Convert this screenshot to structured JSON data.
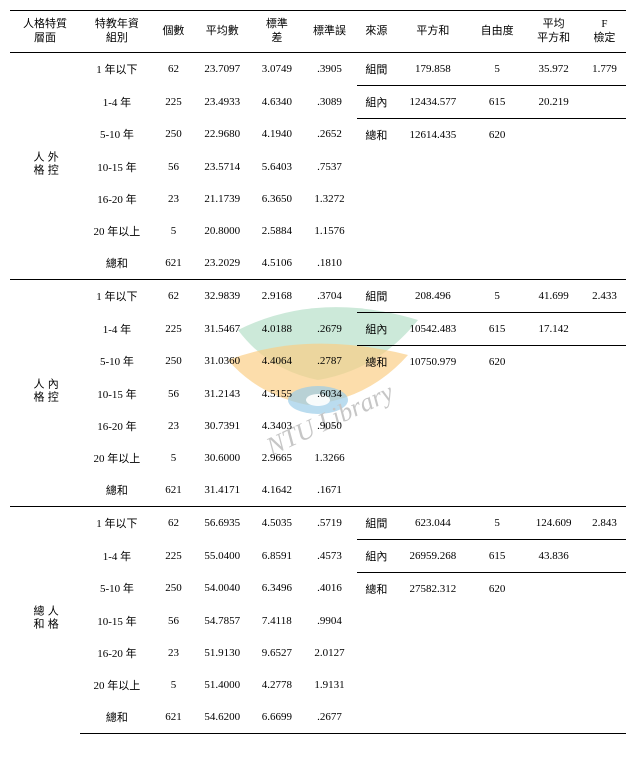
{
  "headers": {
    "c0": "人格特質\n層面",
    "c1": "特教年資\n組別",
    "c2": "個數",
    "c3": "平均數",
    "c4": "標準\n差",
    "c5": "標準誤",
    "c6": "來源",
    "c7": "平方和",
    "c8": "自由度",
    "c9": "平均\n平方和",
    "c10": "F\n檢定"
  },
  "rowlabels": {
    "r1": "1 年以下",
    "r2": "1-4 年",
    "r3": "5-10 年",
    "r4": "10-15 年",
    "r5": "16-20 年",
    "r6": "20 年以上",
    "r7": "總和"
  },
  "src": {
    "between": "組間",
    "within": "組內",
    "total": "總和"
  },
  "sections": [
    {
      "label": "外控\n人格",
      "rows": [
        {
          "n": "62",
          "mean": "23.7097",
          "sd": "3.0749",
          "se": ".3905",
          "src": "between",
          "ss": "179.858",
          "df": "5",
          "ms": "35.972",
          "f": "1.779"
        },
        {
          "n": "225",
          "mean": "23.4933",
          "sd": "4.6340",
          "se": ".3089",
          "src": "within",
          "ss": "12434.577",
          "df": "615",
          "ms": "20.219",
          "f": ""
        },
        {
          "n": "250",
          "mean": "22.9680",
          "sd": "4.1940",
          "se": ".2652",
          "src": "total",
          "ss": "12614.435",
          "df": "620",
          "ms": "",
          "f": ""
        },
        {
          "n": "56",
          "mean": "23.5714",
          "sd": "5.6403",
          "se": ".7537"
        },
        {
          "n": "23",
          "mean": "21.1739",
          "sd": "6.3650",
          "se": "1.3272"
        },
        {
          "n": "5",
          "mean": "20.8000",
          "sd": "2.5884",
          "se": "1.1576"
        },
        {
          "n": "621",
          "mean": "23.2029",
          "sd": "4.5106",
          "se": ".1810"
        }
      ]
    },
    {
      "label": "內控\n人格",
      "rows": [
        {
          "n": "62",
          "mean": "32.9839",
          "sd": "2.9168",
          "se": ".3704",
          "src": "between",
          "ss": "208.496",
          "df": "5",
          "ms": "41.699",
          "f": "2.433"
        },
        {
          "n": "225",
          "mean": "31.5467",
          "sd": "4.0188",
          "se": ".2679",
          "src": "within",
          "ss": "10542.483",
          "df": "615",
          "ms": "17.142",
          "f": ""
        },
        {
          "n": "250",
          "mean": "31.0360",
          "sd": "4.4064",
          "se": ".2787",
          "src": "total",
          "ss": "10750.979",
          "df": "620",
          "ms": "",
          "f": ""
        },
        {
          "n": "56",
          "mean": "31.2143",
          "sd": "4.5155",
          "se": ".6034"
        },
        {
          "n": "23",
          "mean": "30.7391",
          "sd": "4.3403",
          "se": ".9050"
        },
        {
          "n": "5",
          "mean": "30.6000",
          "sd": "2.9665",
          "se": "1.3266"
        },
        {
          "n": "621",
          "mean": "31.4171",
          "sd": "4.1642",
          "se": ".1671"
        }
      ]
    },
    {
      "label": "人格\n總和",
      "rows": [
        {
          "n": "62",
          "mean": "56.6935",
          "sd": "4.5035",
          "se": ".5719",
          "src": "between",
          "ss": "623.044",
          "df": "5",
          "ms": "124.609",
          "f": "2.843"
        },
        {
          "n": "225",
          "mean": "55.0400",
          "sd": "6.8591",
          "se": ".4573",
          "src": "within",
          "ss": "26959.268",
          "df": "615",
          "ms": "43.836",
          "f": ""
        },
        {
          "n": "250",
          "mean": "54.0040",
          "sd": "6.3496",
          "se": ".4016",
          "src": "total",
          "ss": "27582.312",
          "df": "620",
          "ms": "",
          "f": ""
        },
        {
          "n": "56",
          "mean": "54.7857",
          "sd": "7.4118",
          "se": ".9904"
        },
        {
          "n": "23",
          "mean": "51.9130",
          "sd": "9.6527",
          "se": "2.0127"
        },
        {
          "n": "5",
          "mean": "51.4000",
          "sd": "4.2778",
          "se": "1.9131"
        },
        {
          "n": "621",
          "mean": "54.6200",
          "sd": "6.6699",
          "se": ".2677"
        }
      ]
    }
  ]
}
